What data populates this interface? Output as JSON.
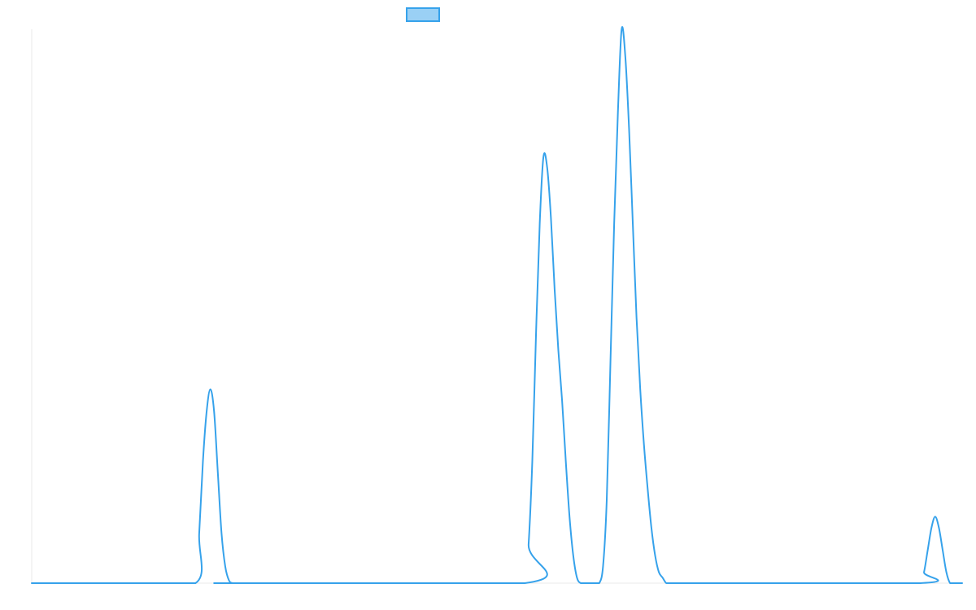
{
  "chart_data": {
    "type": "line",
    "title": "",
    "xlabel": "",
    "ylabel": "",
    "legend": {
      "placement": "top-center",
      "entries": [
        {
          "name": ""
        }
      ]
    },
    "axes": {
      "x_visible": false,
      "y_visible": false,
      "grid": false
    },
    "xlim": [
      0,
      1000
    ],
    "ylim": [
      0,
      100
    ],
    "series": [
      {
        "name": "",
        "color": "#36A2EB",
        "fill": "#9AD0F5",
        "x": [
          0,
          100,
          176,
          180,
          184,
          188,
          192,
          196,
          200,
          204,
          208,
          212,
          216,
          220,
          530,
          534,
          538,
          542,
          546,
          550,
          554,
          558,
          562,
          566,
          570,
          574,
          578,
          582,
          586,
          590,
          594,
          598,
          602,
          606,
          610,
          614,
          618,
          622,
          626,
          630,
          634,
          638,
          642,
          646,
          650,
          654,
          658,
          662,
          666,
          670,
          674,
          678,
          682,
          686,
          690,
          694,
          698,
          702,
          706,
          710,
          955,
          959,
          963,
          967,
          971,
          975,
          979,
          983,
          987,
          991,
          995,
          1000
        ],
        "values": [
          0,
          0,
          0,
          9,
          22,
          31,
          35,
          31,
          20,
          9,
          3,
          0.5,
          0,
          0,
          0,
          7,
          22,
          45,
          65,
          77,
          75,
          66,
          53,
          42,
          33,
          22,
          12,
          5,
          1,
          0,
          0,
          0,
          0,
          0,
          0,
          3,
          15,
          40,
          65,
          85,
          100,
          95,
          82,
          65,
          48,
          35,
          25,
          17,
          10,
          5,
          2,
          1,
          0,
          0,
          0,
          0,
          0,
          0,
          0,
          0,
          0,
          2,
          6,
          10,
          12,
          10,
          6,
          2,
          0,
          0,
          0,
          0
        ]
      }
    ]
  }
}
